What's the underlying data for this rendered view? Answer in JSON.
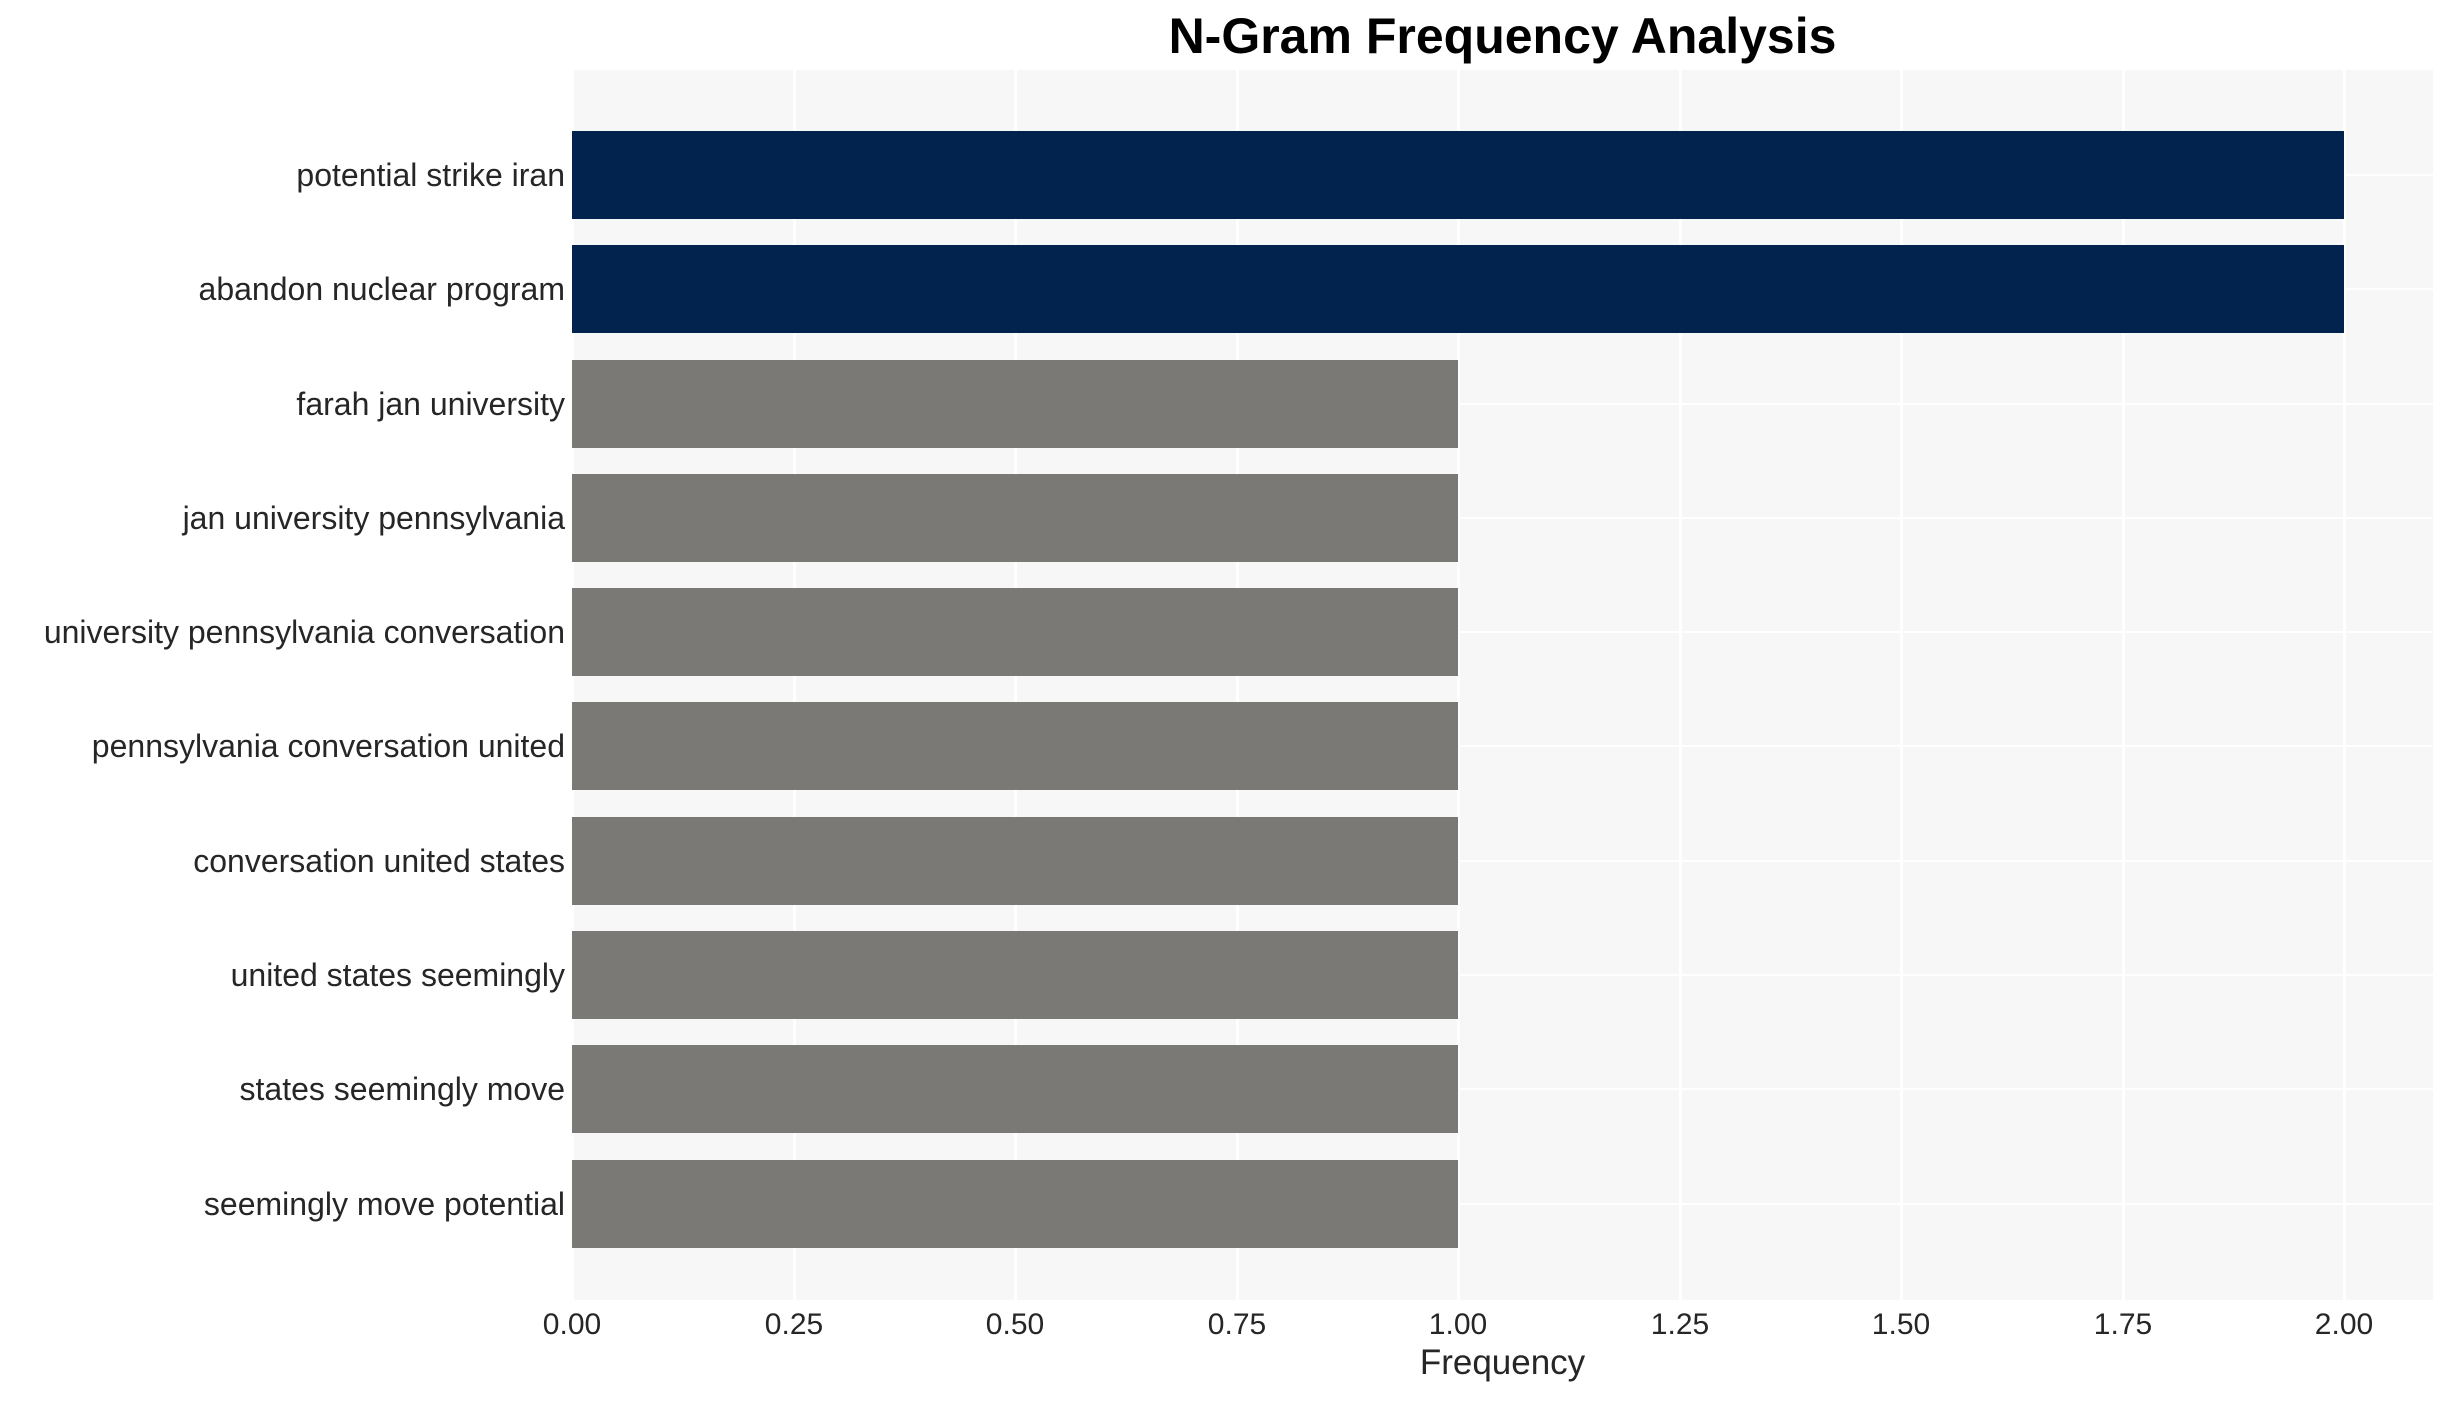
{
  "chart_data": {
    "type": "bar",
    "orientation": "horizontal",
    "title": "N-Gram Frequency Analysis",
    "xlabel": "Frequency",
    "ylabel": "",
    "categories": [
      "potential strike iran",
      "abandon nuclear program",
      "farah jan university",
      "jan university pennsylvania",
      "university pennsylvania conversation",
      "pennsylvania conversation united",
      "conversation united states",
      "united states seemingly",
      "states seemingly move",
      "seemingly move potential"
    ],
    "values": [
      2,
      2,
      1,
      1,
      1,
      1,
      1,
      1,
      1,
      1
    ],
    "xlim": [
      0,
      2.1
    ],
    "xticks": [
      0.0,
      0.25,
      0.5,
      0.75,
      1.0,
      1.25,
      1.5,
      1.75,
      2.0
    ],
    "xtick_labels": [
      "0.00",
      "0.25",
      "0.50",
      "0.75",
      "1.00",
      "1.25",
      "1.50",
      "1.75",
      "2.00"
    ],
    "grid": "on",
    "legend": "none",
    "bar_colors": [
      "#02234d",
      "#02234d",
      "#7a7975",
      "#7a7975",
      "#7a7975",
      "#7a7975",
      "#7a7975",
      "#7a7975",
      "#7a7975",
      "#7a7975"
    ],
    "colors": {
      "highlight_bar": "#02234d",
      "default_bar": "#7a7975",
      "plot_background": "#f7f7f7",
      "gridline": "#ffffff",
      "text": "#262626",
      "title_text": "#000000"
    }
  }
}
